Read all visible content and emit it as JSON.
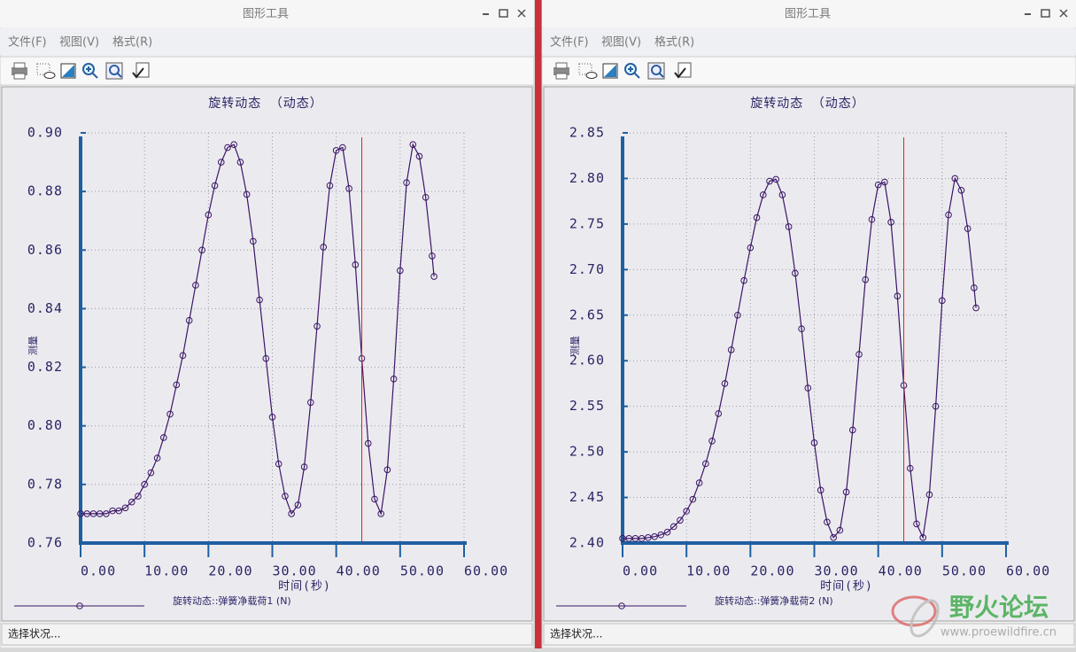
{
  "windows": [
    {
      "title": "图形工具",
      "menu": [
        "文件(F)",
        "视图(V)",
        "格式(R)"
      ],
      "status": "选择状况..."
    },
    {
      "title": "图形工具",
      "menu": [
        "文件(F)",
        "视图(V)",
        "格式(R)"
      ],
      "status": "选择状况..."
    }
  ],
  "chart_data": [
    {
      "type": "line",
      "title": "旋转动态 （动态）",
      "x_label": "时间(秒)",
      "y_label": "测量",
      "x": [
        0,
        1,
        2,
        3,
        4,
        5,
        6,
        7,
        8,
        9,
        10,
        11,
        12,
        13,
        14,
        15,
        16,
        17,
        18,
        19,
        20,
        21,
        22,
        23,
        24,
        25,
        26,
        27,
        28,
        29,
        30,
        31,
        32,
        33,
        34,
        35,
        36,
        37,
        38,
        39,
        40,
        41,
        42,
        43,
        44,
        45,
        46,
        47,
        48,
        49,
        50,
        51,
        52,
        53,
        54,
        55,
        55.3
      ],
      "series": [
        {
          "name": "旋转动态::弹簧净载荷1 (N)",
          "color": "#3b1466",
          "values": [
            0.77,
            0.77,
            0.77,
            0.77,
            0.77,
            0.771,
            0.771,
            0.772,
            0.774,
            0.776,
            0.78,
            0.784,
            0.789,
            0.796,
            0.804,
            0.814,
            0.824,
            0.836,
            0.848,
            0.86,
            0.872,
            0.882,
            0.89,
            0.895,
            0.896,
            0.89,
            0.879,
            0.863,
            0.843,
            0.823,
            0.803,
            0.787,
            0.776,
            0.77,
            0.773,
            0.786,
            0.808,
            0.834,
            0.861,
            0.882,
            0.894,
            0.895,
            0.881,
            0.855,
            0.823,
            0.794,
            0.775,
            0.77,
            0.785,
            0.816,
            0.853,
            0.883,
            0.896,
            0.892,
            0.878,
            0.858,
            0.851
          ]
        }
      ],
      "xlim": [
        0,
        60
      ],
      "xticks": [
        {
          "value": 0,
          "label": "0.00"
        },
        {
          "value": 10,
          "label": "10.00"
        },
        {
          "value": 20,
          "label": "20.00"
        },
        {
          "value": 30,
          "label": "30.00"
        },
        {
          "value": 40,
          "label": "40.00"
        },
        {
          "value": 50,
          "label": "50.00"
        },
        {
          "value": 60,
          "label": "60.00"
        }
      ],
      "ylim": [
        0.76,
        0.9
      ],
      "yticks": [
        0.76,
        0.78,
        {
          "value": 0.8,
          "label": "0.80"
        },
        0.82,
        0.84,
        0.86,
        0.88,
        {
          "value": 0.9,
          "label": "0.90"
        }
      ],
      "grid": true,
      "markers": "circle",
      "axis_color": "#1f5fa0",
      "cursor": {
        "x": 44,
        "color": "#e02020"
      }
    },
    {
      "type": "line",
      "title": "旋转动态 （动态）",
      "x_label": "时间(秒)",
      "y_label": "测量",
      "x": [
        0,
        1,
        2,
        3,
        4,
        5,
        6,
        7,
        8,
        9,
        10,
        11,
        12,
        13,
        14,
        15,
        16,
        17,
        18,
        19,
        20,
        21,
        22,
        23,
        24,
        25,
        26,
        27,
        28,
        29,
        30,
        31,
        32,
        33,
        34,
        35,
        36,
        37,
        38,
        39,
        40,
        41,
        42,
        43,
        44,
        45,
        46,
        47,
        48,
        49,
        50,
        51,
        52,
        53,
        54,
        55,
        55.3
      ],
      "series": [
        {
          "name": "旋转动态::弹簧净载荷2 (N)",
          "color": "#3b1466",
          "values": [
            2.405,
            2.405,
            2.405,
            2.405,
            2.406,
            2.407,
            2.409,
            2.412,
            2.418,
            2.425,
            2.435,
            2.448,
            2.466,
            2.487,
            2.512,
            2.542,
            2.575,
            2.612,
            2.65,
            2.688,
            2.724,
            2.757,
            2.782,
            2.797,
            2.799,
            2.782,
            2.747,
            2.696,
            2.635,
            2.57,
            2.51,
            2.458,
            2.423,
            2.406,
            2.414,
            2.456,
            2.524,
            2.607,
            2.689,
            2.755,
            2.793,
            2.796,
            2.752,
            2.671,
            2.573,
            2.482,
            2.421,
            2.406,
            2.453,
            2.55,
            2.666,
            2.76,
            2.8,
            2.787,
            2.745,
            2.68,
            2.658
          ]
        }
      ],
      "xlim": [
        0,
        60
      ],
      "xticks": [
        {
          "value": 0,
          "label": "0.00"
        },
        {
          "value": 10,
          "label": "10.00"
        },
        {
          "value": 20,
          "label": "20.00"
        },
        {
          "value": 30,
          "label": "30.00"
        },
        {
          "value": 40,
          "label": "40.00"
        },
        {
          "value": 50,
          "label": "50.00"
        },
        {
          "value": 60,
          "label": "60.00"
        }
      ],
      "ylim": [
        2.4,
        2.85
      ],
      "yticks": [
        {
          "value": 2.4,
          "label": "2.40"
        },
        2.45,
        {
          "value": 2.5,
          "label": "2.50"
        },
        2.55,
        {
          "value": 2.6,
          "label": "2.60"
        },
        2.65,
        {
          "value": 2.7,
          "label": "2.70"
        },
        2.75,
        {
          "value": 2.8,
          "label": "2.80"
        },
        2.85
      ],
      "grid": true,
      "markers": "circle",
      "axis_color": "#1f5fa0",
      "cursor": {
        "x": 44,
        "color": "#e02020"
      }
    }
  ],
  "watermark": {
    "name": "野火论坛",
    "url": "www.proewildfire.cn"
  }
}
